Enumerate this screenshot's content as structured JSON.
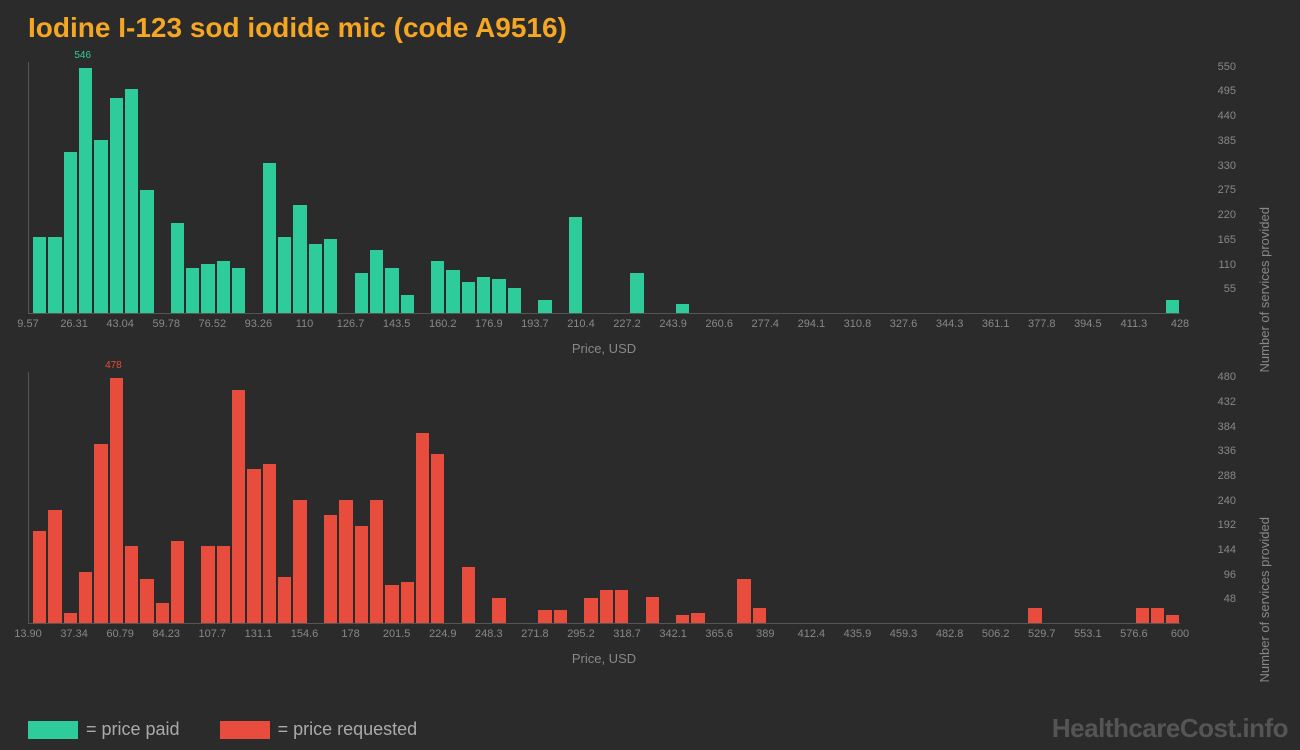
{
  "title": "Iodine I-123 sod iodide mic (code A9516)",
  "watermark": "HealthcareCost.info",
  "colors": {
    "background": "#2b2b2b",
    "title": "#f5a623",
    "paid": "#2ecc9a",
    "requested": "#e74c3c",
    "axis_text": "#888888",
    "axis_line": "#555555"
  },
  "legend": {
    "paid_label": "= price paid",
    "requested_label": "= price requested"
  },
  "axis_labels": {
    "x": "Price, USD",
    "y": "Number of services provided"
  },
  "chart_paid": {
    "type": "bar",
    "bar_color": "#2ecc9a",
    "peak_label": "546",
    "peak_index": 3,
    "ymax": 560,
    "y_ticks": [
      55,
      110,
      165,
      220,
      275,
      330,
      385,
      440,
      495,
      550
    ],
    "x_ticks": [
      "9.57",
      "26.31",
      "43.04",
      "59.78",
      "76.52",
      "93.26",
      "110",
      "126.7",
      "143.5",
      "160.2",
      "176.9",
      "193.7",
      "210.4",
      "227.2",
      "243.9",
      "260.6",
      "277.4",
      "294.1",
      "310.8",
      "327.6",
      "344.3",
      "361.1",
      "377.8",
      "394.5",
      "411.3",
      "428"
    ],
    "values": [
      170,
      170,
      360,
      546,
      385,
      480,
      500,
      275,
      0,
      200,
      100,
      110,
      115,
      100,
      0,
      335,
      170,
      240,
      155,
      165,
      0,
      90,
      140,
      100,
      40,
      0,
      115,
      95,
      70,
      80,
      75,
      55,
      0,
      30,
      0,
      215,
      0,
      0,
      0,
      90,
      0,
      0,
      20,
      0,
      0,
      0,
      0,
      0,
      0,
      0,
      0,
      0,
      0,
      0,
      0,
      0,
      0,
      0,
      0,
      0,
      0,
      0,
      0,
      0,
      0,
      0,
      0,
      0,
      0,
      0,
      0,
      0,
      0,
      0,
      30
    ]
  },
  "chart_requested": {
    "type": "bar",
    "bar_color": "#e74c3c",
    "peak_label": "478",
    "peak_index": 5,
    "ymax": 490,
    "y_ticks": [
      48,
      96,
      144,
      192,
      240,
      288,
      336,
      384,
      432,
      480
    ],
    "x_ticks": [
      "13.90",
      "37.34",
      "60.79",
      "84.23",
      "107.7",
      "131.1",
      "154.6",
      "178",
      "201.5",
      "224.9",
      "248.3",
      "271.8",
      "295.2",
      "318.7",
      "342.1",
      "365.6",
      "389",
      "412.4",
      "435.9",
      "459.3",
      "482.8",
      "506.2",
      "529.7",
      "553.1",
      "576.6",
      "600"
    ],
    "values": [
      180,
      220,
      20,
      100,
      350,
      478,
      150,
      85,
      40,
      160,
      0,
      150,
      150,
      455,
      300,
      310,
      90,
      240,
      0,
      210,
      240,
      190,
      240,
      75,
      80,
      370,
      330,
      0,
      110,
      0,
      48,
      0,
      0,
      25,
      25,
      0,
      48,
      65,
      65,
      0,
      50,
      0,
      15,
      20,
      0,
      0,
      85,
      30,
      0,
      0,
      0,
      0,
      0,
      0,
      0,
      0,
      0,
      0,
      0,
      0,
      0,
      0,
      0,
      0,
      0,
      30,
      0,
      0,
      0,
      0,
      0,
      0,
      30,
      30,
      15
    ]
  }
}
